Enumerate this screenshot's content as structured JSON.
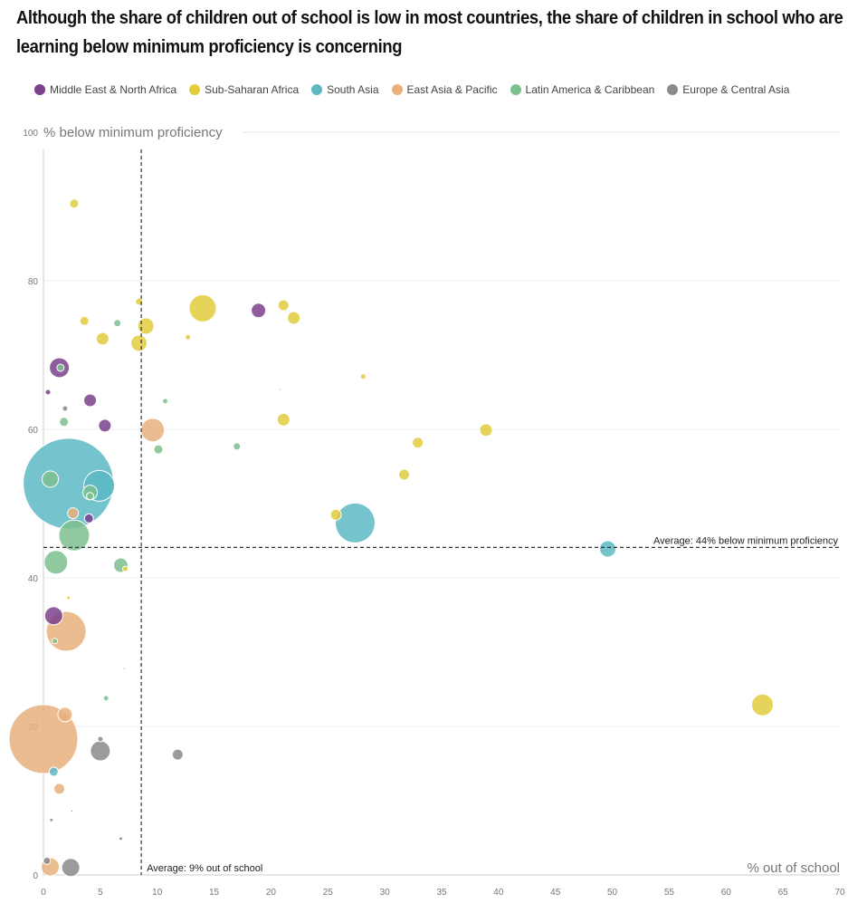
{
  "chart_data": {
    "type": "scatter",
    "title": "Although the share of children out of school is low in most countries, the share of children in school who are learning below minimum proficiency is concerning",
    "xlabel": "% out of school",
    "ylabel": "% below minimum proficiency",
    "xlim": [
      0,
      70
    ],
    "ylim": [
      0,
      100
    ],
    "xticks": [
      "0",
      "5",
      "10",
      "15",
      "20",
      "25",
      "30",
      "35",
      "40",
      "45",
      "50",
      "55",
      "60",
      "65",
      "70"
    ],
    "yticks": [
      "0",
      "20",
      "40",
      "60",
      "80",
      "100"
    ],
    "grid": true,
    "legend_position": "top",
    "averages": {
      "x": 8.6,
      "x_label": "Average: 9% out of school",
      "y": 44.1,
      "y_label": "Average: 44% below minimum proficiency"
    },
    "series": [
      {
        "name": "Middle East & North Africa",
        "color": "#7b3f8c",
        "points": [
          [
            1.4,
            68.3,
            121
          ],
          [
            0.4,
            65.0,
            9
          ],
          [
            4.1,
            63.9,
            49
          ],
          [
            5.4,
            60.5,
            49
          ],
          [
            18.9,
            76.0,
            64
          ],
          [
            4.0,
            48.0,
            25
          ],
          [
            0.9,
            34.9,
            100
          ]
        ]
      },
      {
        "name": "Sub-Saharan Africa",
        "color": "#e1cc3c",
        "points": [
          [
            2.7,
            90.4,
            25
          ],
          [
            14.0,
            76.3,
            225
          ],
          [
            8.4,
            77.2,
            16
          ],
          [
            9.0,
            73.9,
            81
          ],
          [
            3.6,
            74.6,
            25
          ],
          [
            5.2,
            72.2,
            49
          ],
          [
            8.4,
            71.6,
            81
          ],
          [
            12.7,
            72.4,
            9
          ],
          [
            21.1,
            76.7,
            36
          ],
          [
            22.0,
            75.0,
            49
          ],
          [
            28.1,
            67.1,
            9
          ],
          [
            21.1,
            61.3,
            49
          ],
          [
            20.8,
            65.4,
            1
          ],
          [
            32.9,
            58.2,
            36
          ],
          [
            38.9,
            59.9,
            49
          ],
          [
            31.7,
            53.9,
            36
          ],
          [
            25.7,
            48.5,
            36
          ],
          [
            63.2,
            22.9,
            144
          ],
          [
            7.2,
            41.2,
            9
          ],
          [
            2.2,
            37.3,
            4
          ],
          [
            8.5,
            28.3,
            1
          ]
        ]
      },
      {
        "name": "South Asia",
        "color": "#5db8c4",
        "points": [
          [
            2.2,
            52.7,
            2500
          ],
          [
            4.9,
            52.4,
            289
          ],
          [
            27.4,
            47.4,
            484
          ],
          [
            49.6,
            43.9,
            81
          ],
          [
            0.9,
            13.9,
            25
          ]
        ]
      },
      {
        "name": "East Asia & Pacific",
        "color": "#e9b07e",
        "points": [
          [
            9.6,
            59.9,
            169
          ],
          [
            2.6,
            48.7,
            36
          ],
          [
            2.0,
            32.8,
            484
          ],
          [
            0.0,
            18.3,
            1444
          ],
          [
            1.9,
            21.6,
            64
          ],
          [
            1.4,
            11.6,
            36
          ],
          [
            0.6,
            1.1,
            100
          ]
        ]
      },
      {
        "name": "Latin America & Caribbean",
        "color": "#7cc08e",
        "points": [
          [
            6.5,
            74.3,
            16
          ],
          [
            1.8,
            61.0,
            25
          ],
          [
            10.7,
            63.8,
            9
          ],
          [
            10.1,
            57.3,
            25
          ],
          [
            17.0,
            57.7,
            16
          ],
          [
            0.6,
            53.3,
            81
          ],
          [
            4.1,
            51.5,
            64
          ],
          [
            4.1,
            51.0,
            16
          ],
          [
            2.7,
            45.7,
            289
          ],
          [
            1.1,
            42.1,
            169
          ],
          [
            6.8,
            41.7,
            64
          ],
          [
            1.0,
            31.5,
            9
          ],
          [
            5.5,
            23.8,
            9
          ],
          [
            1.5,
            68.3,
            16
          ],
          [
            7.1,
            27.8,
            1
          ]
        ]
      },
      {
        "name": "Europe & Central Asia",
        "color": "#8a8a8a",
        "points": [
          [
            1.9,
            62.8,
            9
          ],
          [
            5.0,
            16.7,
            121
          ],
          [
            5.0,
            18.3,
            9
          ],
          [
            11.8,
            16.2,
            36
          ],
          [
            0.7,
            7.4,
            4
          ],
          [
            2.5,
            8.6,
            1
          ],
          [
            6.8,
            4.9,
            4
          ],
          [
            2.4,
            1.0,
            100
          ],
          [
            0.3,
            1.9,
            16
          ]
        ]
      }
    ]
  }
}
